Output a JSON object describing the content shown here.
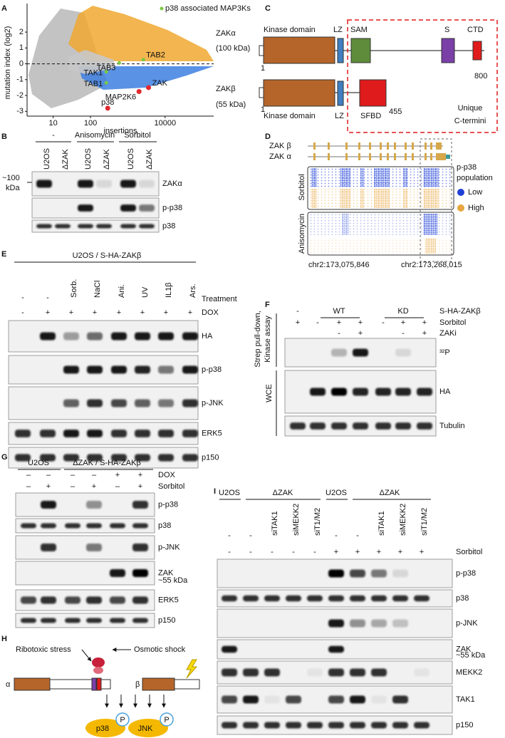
{
  "chart_data": {
    "type": "scatter",
    "xlabel": "insertions",
    "ylabel": "mutation index (log2)",
    "xlog": true,
    "xlim": [
      2,
      200000
    ],
    "ylim": [
      -3.3,
      3.8
    ],
    "xticks": [
      10,
      100,
      10000
    ],
    "yticks": [
      2,
      1,
      0,
      -1,
      -2,
      -3
    ],
    "zero_line": true,
    "series": [
      {
        "name": "p38 associated MAP3Ks",
        "color": "#7ac943",
        "x": [
          2600,
          590,
          265,
          265
        ],
        "y": [
          0.26,
          0.05,
          -0.5,
          -1.2
        ],
        "labels": [
          "TAB2",
          "TAB3",
          "TAK1",
          "TAB1"
        ]
      },
      {
        "color": "#e0282e",
        "x": [
          3600,
          2000,
          290
        ],
        "y": [
          -1.5,
          -1.75,
          -2.8
        ],
        "labels": [
          "ZAK",
          "MAP2K6",
          "p38"
        ]
      }
    ]
  },
  "panels": {
    "letters": [
      "A",
      "B",
      "C",
      "D",
      "E",
      "F",
      "G",
      "H",
      "I"
    ],
    "B": {
      "groups": [
        "-",
        "Anisomycin",
        "Sorbitol"
      ],
      "lanes": [
        "U2OS",
        "ΔZAK",
        "U2OS",
        "ΔZAK",
        "U2OS",
        "ΔZAK"
      ],
      "marker": [
        "~100",
        "kDa"
      ],
      "blots": [
        "ZAKα",
        "p-p38",
        "p38"
      ]
    },
    "C": {
      "alpha": {
        "name": "ZAKα",
        "size": "(100 kDa)",
        "start": "1",
        "end": "800",
        "domains": [
          "Kinase domain",
          "LZ",
          "SAM",
          "S",
          "CTD"
        ]
      },
      "beta": {
        "name": "ZAKβ",
        "size": "(55 kDa)",
        "start": "1",
        "end": "455",
        "domains": [
          "Kinase domain",
          "LZ",
          "SFBD"
        ]
      },
      "box": [
        "Unique",
        "C-termini"
      ]
    },
    "D": {
      "tracks": [
        "ZAK β",
        "ZAK α"
      ],
      "legend_title": [
        "p-p38",
        "population"
      ],
      "legend": [
        "Low",
        "High"
      ],
      "rows": [
        "Sorbitol",
        "Anisomycin"
      ],
      "coords": [
        "chr2:173,075,846",
        "chr2:173,268,015"
      ]
    },
    "E": {
      "title": "U2OS / S-HA-ZAKβ",
      "treatment": [
        "-",
        "-",
        "Sorb.",
        "NaCl",
        "Ani.",
        "UV",
        "IL1β",
        "Ars."
      ],
      "treatment_label": "Treatment",
      "dox": [
        "-",
        "+",
        "+",
        "+",
        "+",
        "+",
        "+",
        "+"
      ],
      "dox_label": "DOX",
      "blots": [
        "HA",
        "p-p38",
        "p-JNK",
        "ERK5",
        "p150"
      ]
    },
    "F": {
      "groups": [
        "-",
        "WT",
        "KD"
      ],
      "construct": "S-HA-ZAKβ",
      "sorbitol": [
        "+",
        "-",
        "+",
        "+",
        "-",
        "+",
        "+"
      ],
      "sorbitol_label": "Sorbitol",
      "zaki": [
        null,
        null,
        "-",
        "+",
        null,
        "-",
        "+"
      ],
      "zaki_label": "ZAKi",
      "side": [
        "Strep pull-down,",
        "Kinase assay",
        "WCE"
      ],
      "blots": [
        "³²P",
        "HA",
        "Tubulin"
      ]
    },
    "G": {
      "groups": [
        "U2OS",
        "ΔZAK / S-HA-ZAKβ"
      ],
      "dox": [
        "–",
        "–",
        "–",
        "–",
        "+",
        "+"
      ],
      "dox_label": "DOX",
      "sorbitol": [
        "–",
        "+",
        "–",
        "+",
        "–",
        "+"
      ],
      "sorbitol_label": "Sorbitol",
      "blots": [
        "p-p38",
        "p38",
        "p-JNK",
        "ZAK",
        "ERK5",
        "p150"
      ],
      "marker": "~55 kDa"
    },
    "H": {
      "stimuli": [
        "Ribotoxic stress",
        "Osmotic shock"
      ],
      "isoforms": [
        "α",
        "β"
      ],
      "kinases": [
        "p38",
        "JNK"
      ],
      "phospho": [
        "P",
        "P"
      ]
    },
    "I": {
      "groups": [
        "U2OS",
        "ΔZAK",
        "U2OS",
        "ΔZAK"
      ],
      "sirna": [
        "-",
        "-",
        "siTAK1",
        "siMEKK2",
        "siT1/M2",
        "-",
        "-",
        "siTAK1",
        "siMEKK2",
        "siT1/M2"
      ],
      "sorbitol": [
        "-",
        "-",
        "-",
        "-",
        "-",
        "+",
        "+",
        "+",
        "+",
        "+"
      ],
      "sorbitol_label": "Sorbitol",
      "blots": [
        "p-p38",
        "p38",
        "p-JNK",
        "ZAK",
        "MEKK2",
        "TAK1",
        "p150"
      ],
      "marker": "~55 kDa"
    }
  }
}
